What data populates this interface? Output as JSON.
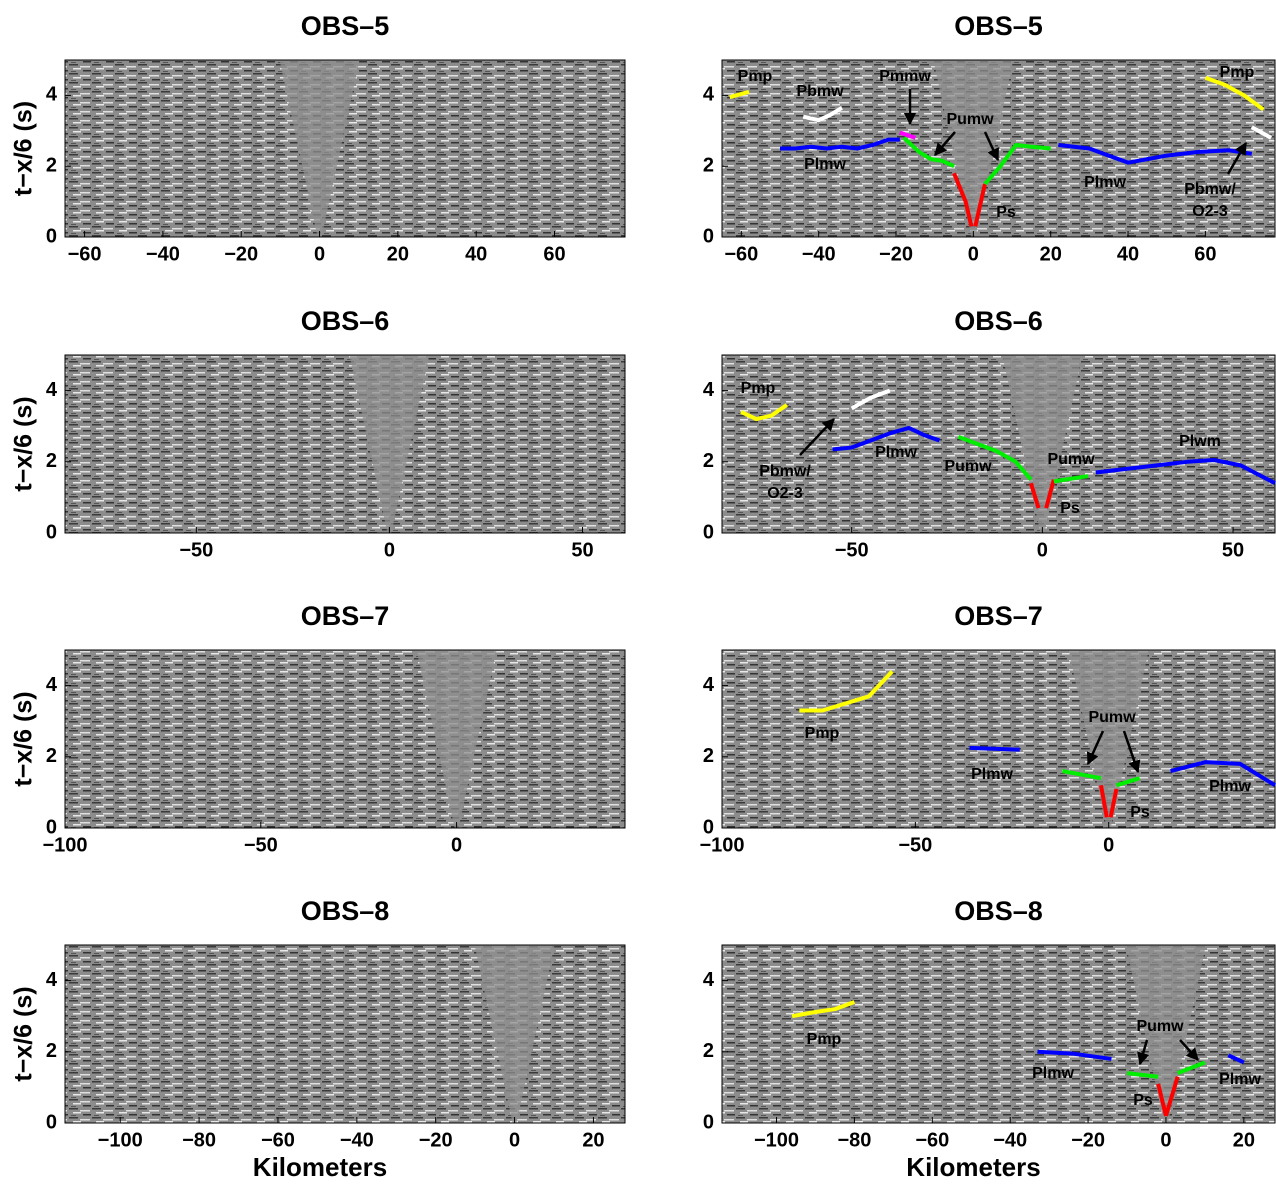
{
  "chart_data": [
    {
      "type": "seismic",
      "title": "OBS–5",
      "ylabel": "t−x/6 (s)",
      "xlim": [
        -65,
        78
      ],
      "ylim": [
        0,
        5
      ],
      "xticks": [
        {
          "value": -60,
          "label": "−60"
        },
        {
          "value": -40,
          "label": "−40"
        },
        {
          "value": -20,
          "label": "−20"
        },
        0,
        20,
        40,
        60
      ],
      "yticks": [
        0,
        2,
        4
      ]
    },
    {
      "type": "seismic",
      "title": "OBS–5",
      "xlim": [
        -65,
        78
      ],
      "ylim": [
        0,
        5
      ],
      "xticks": [
        {
          "value": -60,
          "label": "−60"
        },
        {
          "value": -40,
          "label": "−40"
        },
        {
          "value": -20,
          "label": "−20"
        },
        0,
        20,
        40,
        60
      ],
      "yticks": [
        0,
        2,
        4
      ],
      "series": [
        {
          "color": "#ffff00",
          "x": [
            -63,
            -58
          ],
          "values": [
            3.95,
            4.1
          ]
        },
        {
          "color": "#ffffff",
          "x": [
            -44,
            -40,
            -37,
            -34
          ],
          "values": [
            3.4,
            3.3,
            3.45,
            3.65
          ]
        },
        {
          "color": "#0000ff",
          "x": [
            -50,
            -46,
            -42,
            -38,
            -34,
            -30,
            -26,
            -22,
            -19
          ],
          "values": [
            2.5,
            2.5,
            2.55,
            2.5,
            2.55,
            2.5,
            2.6,
            2.75,
            2.75
          ]
        },
        {
          "color": "#ff00ff",
          "x": [
            -19,
            -15
          ],
          "values": [
            2.95,
            2.8
          ]
        },
        {
          "color": "#00ee00",
          "x": [
            -18,
            -14,
            -11,
            -8,
            -5
          ],
          "values": [
            2.8,
            2.4,
            2.2,
            2.15,
            2.0
          ]
        },
        {
          "color": "#ff0000",
          "x": [
            -5,
            -2,
            -0.5
          ],
          "values": [
            1.8,
            1.0,
            0.3
          ]
        },
        {
          "color": "#ff0000",
          "x": [
            0.5,
            3
          ],
          "values": [
            0.3,
            1.5
          ]
        },
        {
          "color": "#00ee00",
          "x": [
            3,
            7,
            11,
            15,
            20
          ],
          "values": [
            1.5,
            2.0,
            2.6,
            2.55,
            2.5
          ]
        },
        {
          "color": "#0000ff",
          "x": [
            22,
            30,
            35,
            40,
            50,
            58,
            66,
            72
          ],
          "values": [
            2.6,
            2.5,
            2.3,
            2.1,
            2.3,
            2.4,
            2.45,
            2.35
          ]
        },
        {
          "color": "#ffff00",
          "x": [
            60,
            65,
            70,
            75
          ],
          "values": [
            4.5,
            4.3,
            4.0,
            3.6
          ]
        },
        {
          "color": "#ffffff",
          "x": [
            72,
            77
          ],
          "values": [
            3.1,
            2.8
          ]
        }
      ],
      "annotations": [
        "Pmp",
        "Pbmw",
        "Pmmw",
        "Pumw",
        "Plmw",
        "Ps",
        "Plmw",
        "Pmp",
        "Pbmw/",
        "O2-3"
      ]
    },
    {
      "type": "seismic",
      "title": "OBS–6",
      "ylabel": "t−x/6 (s)",
      "xlim": [
        -84,
        61
      ],
      "ylim": [
        0,
        5
      ],
      "xticks": [
        {
          "value": -50,
          "label": "−50"
        },
        0,
        50
      ],
      "yticks": [
        0,
        2,
        4
      ]
    },
    {
      "type": "seismic",
      "title": "OBS–6",
      "xlim": [
        -84,
        61
      ],
      "ylim": [
        0,
        5
      ],
      "xticks": [
        {
          "value": -50,
          "label": "−50"
        },
        0,
        50
      ],
      "yticks": [
        0,
        2,
        4
      ],
      "series": [
        {
          "color": "#ffff00",
          "x": [
            -79,
            -75,
            -71,
            -67
          ],
          "values": [
            3.4,
            3.2,
            3.3,
            3.6
          ]
        },
        {
          "color": "#ffffff",
          "x": [
            -50,
            -45,
            -40
          ],
          "values": [
            3.5,
            3.8,
            4.0
          ]
        },
        {
          "color": "#0000ff",
          "x": [
            -55,
            -50,
            -45,
            -40,
            -35,
            -31,
            -27
          ],
          "values": [
            2.35,
            2.4,
            2.6,
            2.8,
            2.95,
            2.75,
            2.6
          ]
        },
        {
          "color": "#00ee00",
          "x": [
            -22,
            -17,
            -12,
            -7,
            -3
          ],
          "values": [
            2.7,
            2.5,
            2.3,
            2.0,
            1.5
          ]
        },
        {
          "color": "#ff0000",
          "x": [
            -3,
            -1
          ],
          "values": [
            1.4,
            0.7
          ]
        },
        {
          "color": "#ff0000",
          "x": [
            1,
            3
          ],
          "values": [
            0.7,
            1.5
          ]
        },
        {
          "color": "#00ee00",
          "x": [
            3,
            12
          ],
          "values": [
            1.45,
            1.6
          ]
        },
        {
          "color": "#0000ff",
          "x": [
            14,
            22,
            30,
            38,
            45,
            52,
            61
          ],
          "values": [
            1.7,
            1.8,
            1.9,
            2.0,
            2.05,
            1.9,
            1.4
          ]
        }
      ],
      "annotations": [
        "Pmp",
        "Pbmw/",
        "O2-3",
        "Plmw",
        "Pumw",
        "Pumw",
        "Ps",
        "Plwm"
      ]
    },
    {
      "type": "seismic",
      "title": "OBS–7",
      "ylabel": "t−x/6 (s)",
      "xlim": [
        -100,
        43
      ],
      "ylim": [
        0,
        5
      ],
      "xticks": [
        {
          "value": -100,
          "label": "−100"
        },
        {
          "value": -50,
          "label": "−50"
        },
        0
      ],
      "yticks": [
        0,
        2,
        4
      ]
    },
    {
      "type": "seismic",
      "title": "OBS–7",
      "xlim": [
        -100,
        43
      ],
      "ylim": [
        0,
        5
      ],
      "xticks": [
        {
          "value": -100,
          "label": "−100"
        },
        {
          "value": -50,
          "label": "−50"
        },
        0
      ],
      "yticks": [
        0,
        2,
        4
      ],
      "series": [
        {
          "color": "#ffff00",
          "x": [
            -80,
            -74,
            -68,
            -62,
            -56
          ],
          "values": [
            3.3,
            3.3,
            3.5,
            3.7,
            4.4
          ]
        },
        {
          "color": "#0000ff",
          "x": [
            -36,
            -23
          ],
          "values": [
            2.25,
            2.2
          ]
        },
        {
          "color": "#00ee00",
          "x": [
            -12,
            -2
          ],
          "values": [
            1.6,
            1.4
          ]
        },
        {
          "color": "#ff0000",
          "x": [
            -2,
            -0.5
          ],
          "values": [
            1.2,
            0.3
          ]
        },
        {
          "color": "#ff0000",
          "x": [
            0.5,
            2
          ],
          "values": [
            0.3,
            1.1
          ]
        },
        {
          "color": "#00ee00",
          "x": [
            2,
            8
          ],
          "values": [
            1.2,
            1.4
          ]
        },
        {
          "color": "#0000ff",
          "x": [
            16,
            25,
            34,
            43
          ],
          "values": [
            1.6,
            1.85,
            1.8,
            1.2
          ]
        }
      ],
      "annotations": [
        "Pmp",
        "Plmw",
        "Pumw",
        "Ps",
        "Plmw"
      ]
    },
    {
      "type": "seismic",
      "title": "OBS–8",
      "ylabel": "t−x/6 (s)",
      "xlabel": "Kilometers",
      "xlim": [
        -114,
        28
      ],
      "ylim": [
        0,
        5
      ],
      "xticks": [
        {
          "value": -100,
          "label": "−100"
        },
        {
          "value": -80,
          "label": "−80"
        },
        {
          "value": -60,
          "label": "−60"
        },
        {
          "value": -40,
          "label": "−40"
        },
        {
          "value": -20,
          "label": "−20"
        },
        0,
        20
      ],
      "yticks": [
        0,
        2,
        4
      ]
    },
    {
      "type": "seismic",
      "title": "OBS–8",
      "xlabel": "Kilometers",
      "xlim": [
        -114,
        28
      ],
      "ylim": [
        0,
        5
      ],
      "xticks": [
        {
          "value": -100,
          "label": "−100"
        },
        {
          "value": -80,
          "label": "−80"
        },
        {
          "value": -60,
          "label": "−60"
        },
        {
          "value": -40,
          "label": "−40"
        },
        {
          "value": -20,
          "label": "−20"
        },
        0,
        20
      ],
      "yticks": [
        0,
        2,
        4
      ],
      "series": [
        {
          "color": "#ffff00",
          "x": [
            -96,
            -91,
            -85,
            -80
          ],
          "values": [
            3.0,
            3.1,
            3.2,
            3.4
          ]
        },
        {
          "color": "#0000ff",
          "x": [
            -33,
            -24,
            -14
          ],
          "values": [
            2.0,
            1.95,
            1.8
          ]
        },
        {
          "color": "#00ee00",
          "x": [
            -10,
            -2
          ],
          "values": [
            1.4,
            1.3
          ]
        },
        {
          "color": "#ff0000",
          "x": [
            -2,
            0
          ],
          "values": [
            1.1,
            0.2
          ]
        },
        {
          "color": "#ff0000",
          "x": [
            0,
            3
          ],
          "values": [
            0.2,
            1.3
          ]
        },
        {
          "color": "#00ee00",
          "x": [
            3,
            10
          ],
          "values": [
            1.4,
            1.7
          ]
        },
        {
          "color": "#0000ff",
          "x": [
            16,
            20
          ],
          "values": [
            1.9,
            1.7
          ]
        }
      ],
      "annotations": [
        "Pmp",
        "Plmw",
        "Pumw",
        "Ps",
        "Plmw"
      ]
    }
  ]
}
